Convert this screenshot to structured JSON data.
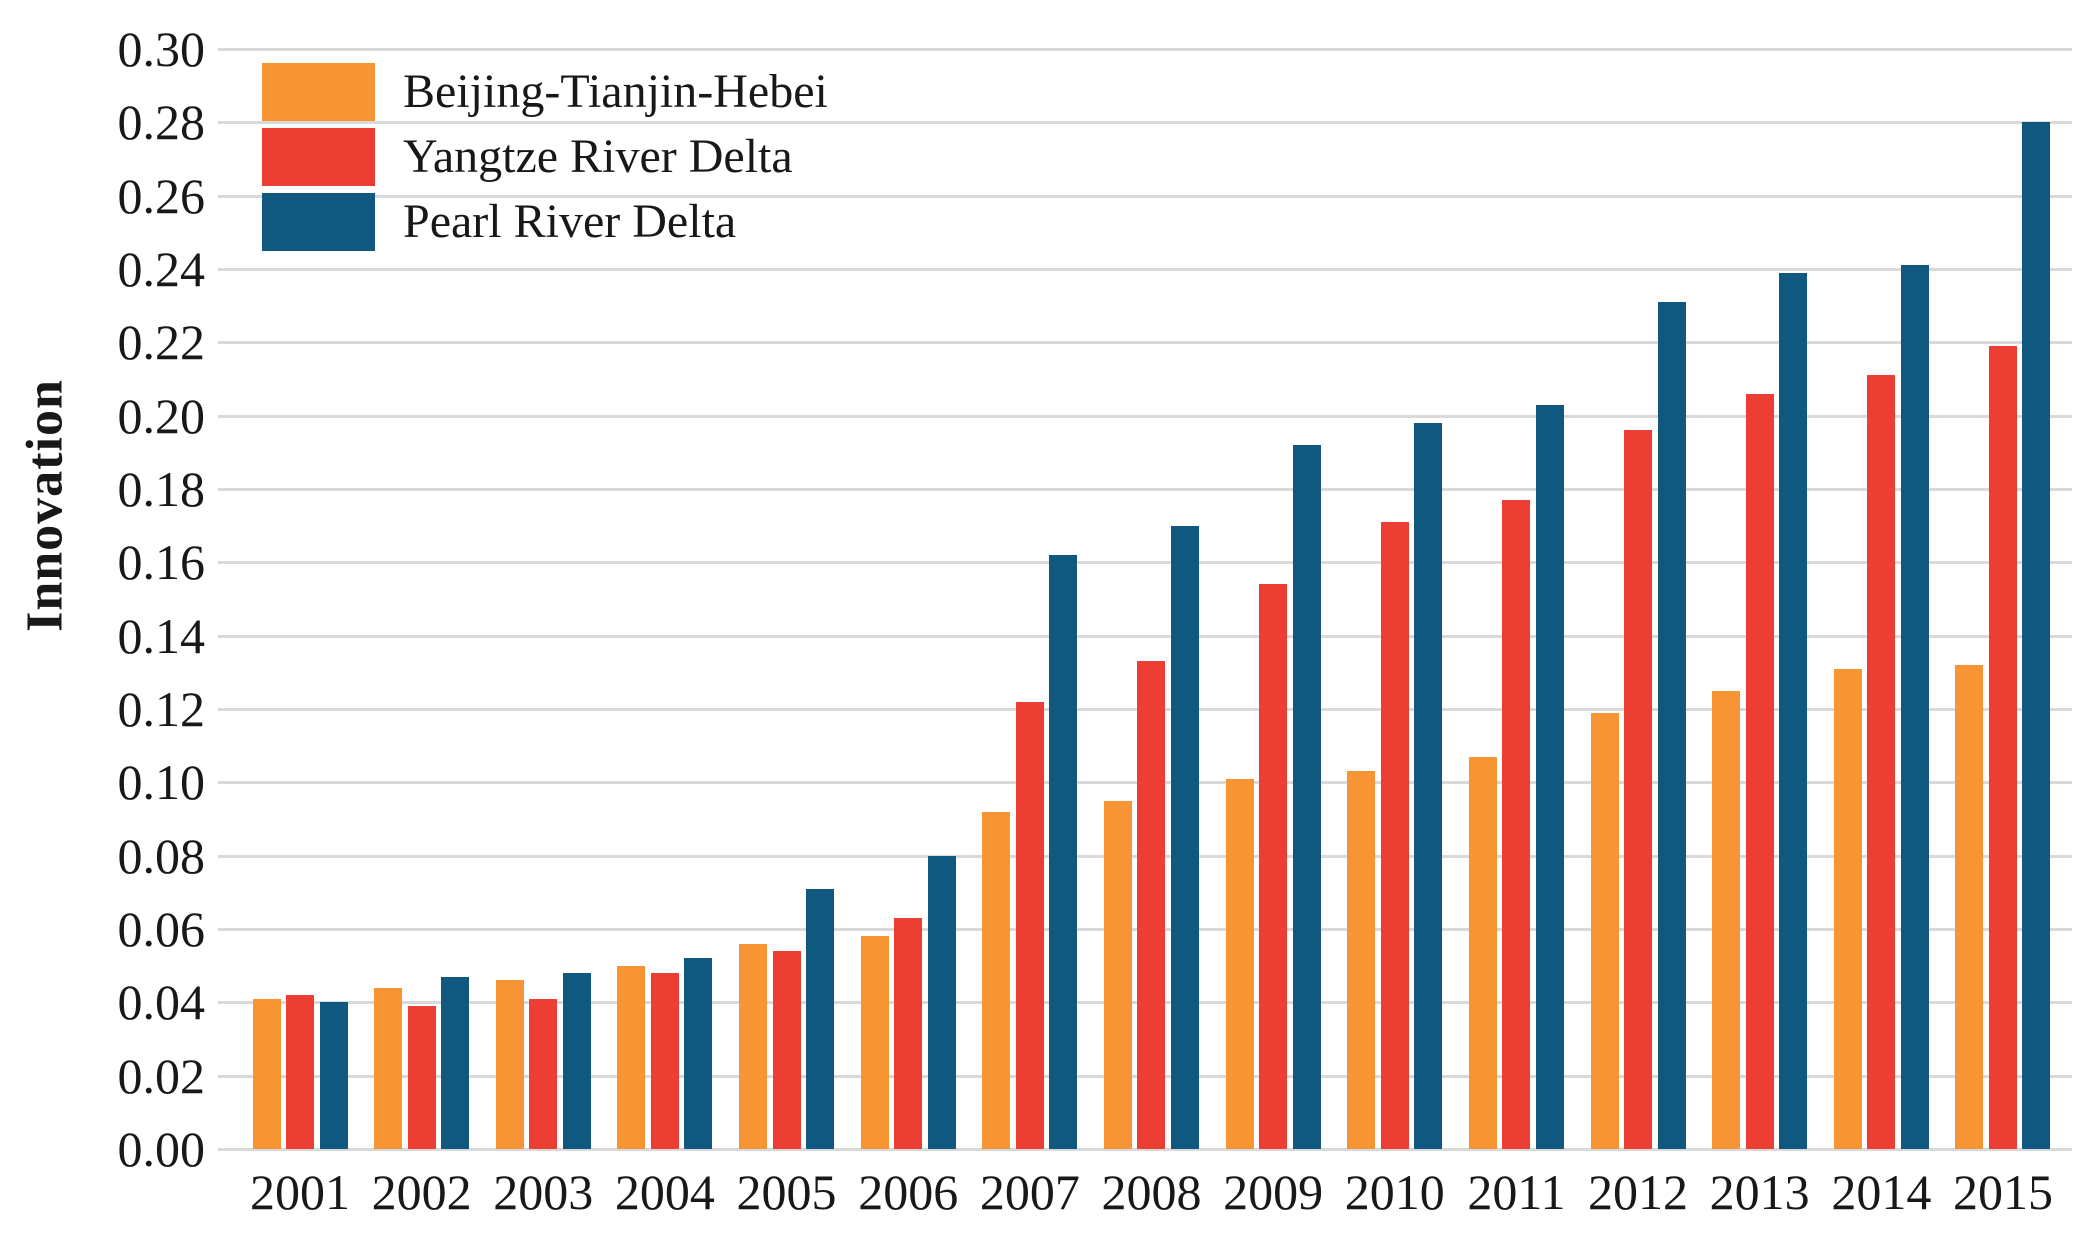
{
  "figure": {
    "background_color": "#ffffff",
    "text_color": "#181818",
    "gridline_color": "#d9d9d9"
  },
  "chart_data": {
    "type": "bar",
    "title": "",
    "xlabel": "",
    "ylabel": "Innovation",
    "ylim": [
      0,
      0.3
    ],
    "ytick_step": 0.02,
    "grid": "horizontal",
    "legend_position": "top-left",
    "categories": [
      "2001",
      "2002",
      "2003",
      "2004",
      "2005",
      "2006",
      "2007",
      "2008",
      "2009",
      "2010",
      "2011",
      "2012",
      "2013",
      "2014",
      "2015"
    ],
    "series": [
      {
        "name": "Beijing-Tianjin-Hebei",
        "color": "#F79433",
        "values": [
          0.041,
          0.044,
          0.046,
          0.05,
          0.056,
          0.058,
          0.092,
          0.095,
          0.101,
          0.103,
          0.107,
          0.119,
          0.125,
          0.131,
          0.132
        ]
      },
      {
        "name": "Yangtze River Delta",
        "color": "#EC3E32",
        "values": [
          0.042,
          0.039,
          0.041,
          0.048,
          0.054,
          0.063,
          0.122,
          0.133,
          0.154,
          0.171,
          0.177,
          0.196,
          0.206,
          0.211,
          0.219
        ]
      },
      {
        "name": "Pearl River Delta",
        "color": "#10587E",
        "values": [
          0.04,
          0.047,
          0.048,
          0.052,
          0.071,
          0.08,
          0.162,
          0.17,
          0.192,
          0.198,
          0.203,
          0.231,
          0.239,
          0.241,
          0.28
        ]
      }
    ]
  }
}
